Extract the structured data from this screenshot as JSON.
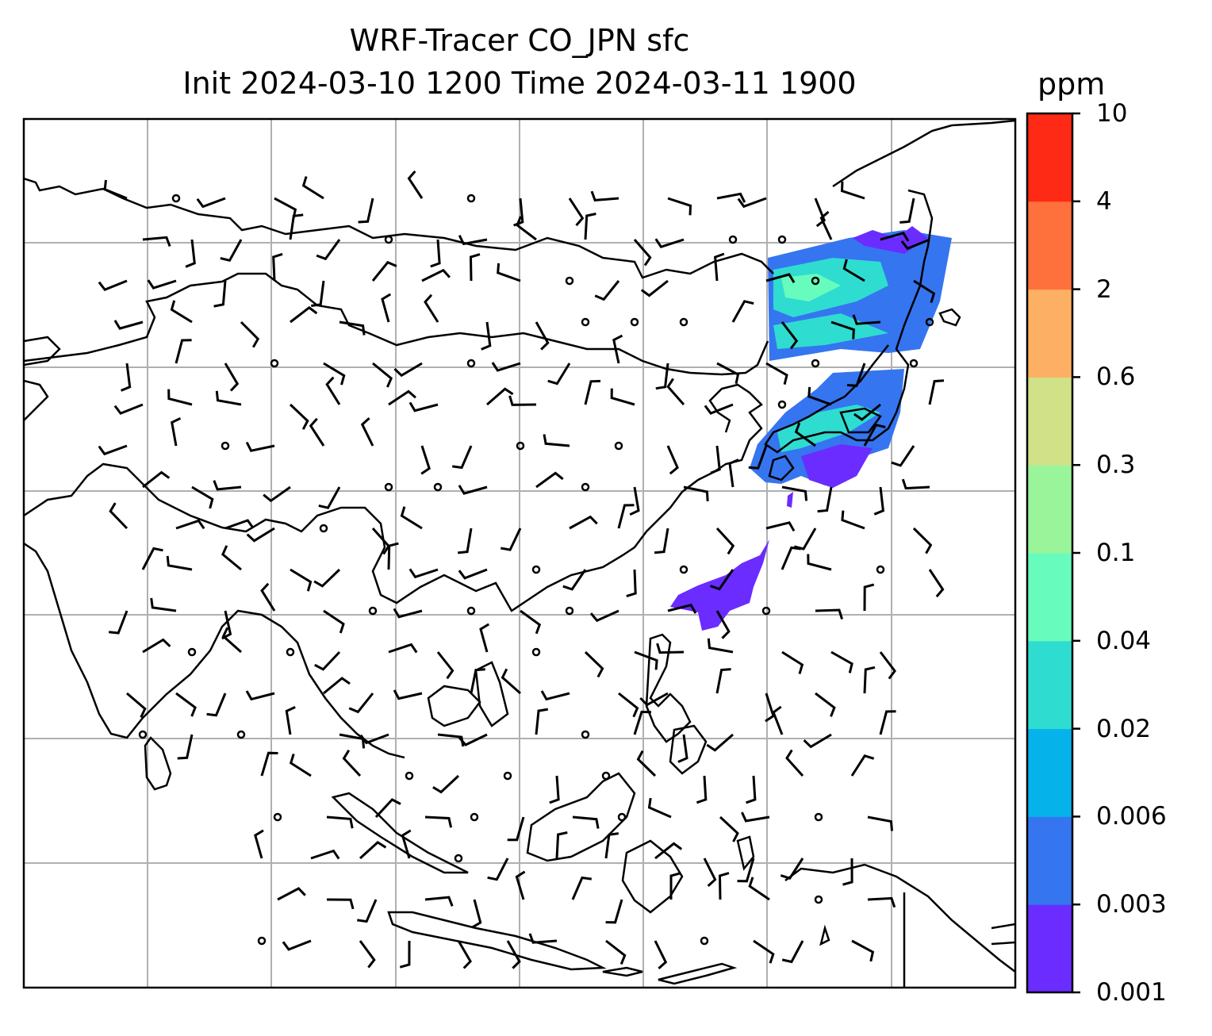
{
  "title": {
    "line1": "WRF-Tracer CO_JPN sfc",
    "line2": "Init 2024-03-10 1200 Time 2024-03-11 1900"
  },
  "colorbar": {
    "unit": "ppm",
    "ticks": [
      "0.001",
      "0.003",
      "0.006",
      "0.02",
      "0.04",
      "0.1",
      "0.3",
      "0.6",
      "2",
      "4",
      "10"
    ],
    "colors": [
      "#6a2cff",
      "#3575f0",
      "#06b2ea",
      "#2fdcd0",
      "#68fbbe",
      "#9af59a",
      "#d1e187",
      "#fdb064",
      "#fe703c",
      "#ff2a16"
    ]
  },
  "map": {
    "gridline_color": "#b0b0b0",
    "coastline_color": "#000000",
    "plume_colors": {
      "low": "#6a2cff",
      "mid": "#3575f0",
      "high": "#2fdcd0",
      "peak": "#68fbbe"
    }
  }
}
